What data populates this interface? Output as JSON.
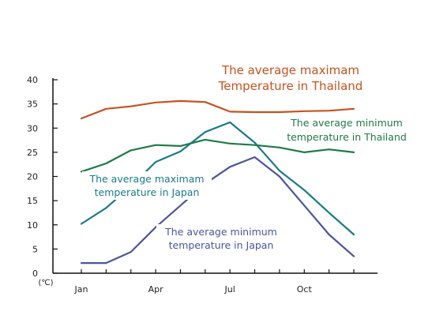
{
  "chart_data": {
    "type": "line",
    "title": "",
    "xlabel": "",
    "ylabel": "",
    "unit_label": "(℃)",
    "months": [
      1,
      2,
      3,
      4,
      5,
      6,
      7,
      8,
      9,
      10,
      11,
      12
    ],
    "x_tick_labels": [
      {
        "month": 1,
        "label": "Jan"
      },
      {
        "month": 4,
        "label": "Apr"
      },
      {
        "month": 7,
        "label": "Jul"
      },
      {
        "month": 10,
        "label": "Oct"
      }
    ],
    "y_ticks": [
      0,
      5,
      10,
      15,
      20,
      25,
      30,
      35,
      40
    ],
    "ylim": [
      0,
      40
    ],
    "xlim": [
      1,
      12
    ],
    "grid": false,
    "legend": "inline annotations",
    "series": [
      {
        "key": "thai_max",
        "label_lines": [
          "The average maximam",
          "Temperature in Thailand"
        ],
        "color": "#c8521e",
        "values": [
          32,
          34,
          34.5,
          35.3,
          35.6,
          35.4,
          33.4,
          33.3,
          33.3,
          33.5,
          33.6,
          34
        ]
      },
      {
        "key": "thai_min",
        "label_lines": [
          "The average minimum",
          "temperature in Thailand"
        ],
        "color": "#1e7a46",
        "values": [
          21,
          22.7,
          25.4,
          26.5,
          26.3,
          27.6,
          26.8,
          26.5,
          26,
          25,
          25.6,
          25
        ]
      },
      {
        "key": "japan_max",
        "label_lines": [
          "The average maximam",
          "temperature in Japan"
        ],
        "color": "#1a7a8a",
        "values": [
          10.2,
          13.5,
          18,
          23,
          25.2,
          29.2,
          31.2,
          27,
          21.2,
          17.2,
          12.5,
          8
        ]
      },
      {
        "key": "japan_min",
        "label_lines": [
          "The average minimum",
          "temperature in Japan"
        ],
        "color": "#4a55a0",
        "values": [
          2.1,
          2.1,
          4.4,
          9.5,
          14,
          18.5,
          22,
          24,
          20,
          14,
          8,
          3.5
        ]
      }
    ]
  }
}
